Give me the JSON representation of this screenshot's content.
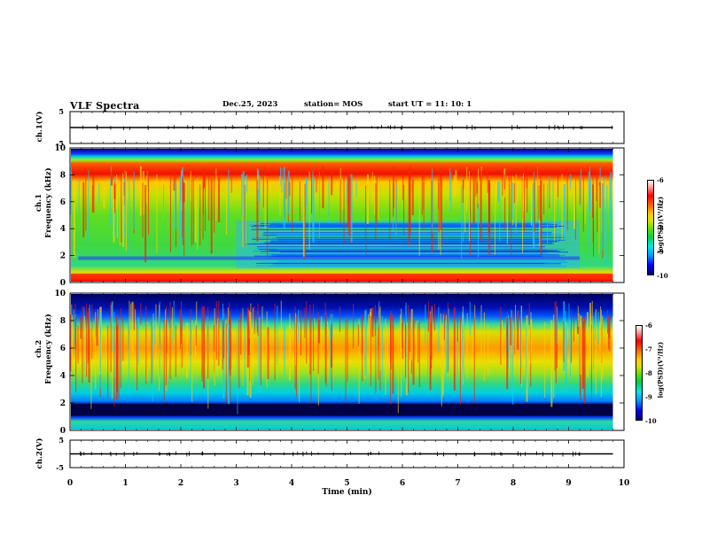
{
  "header": {
    "title": "VLF Spectra",
    "date": "Dec.25, 2023",
    "station": "station= MOS",
    "start": "start UT =  11: 10: 1"
  },
  "xaxis": {
    "label": "Time (min)"
  },
  "panels": {
    "ch1_wave": {
      "label": "ch.1(V)",
      "ticks": [
        "5",
        "-5"
      ]
    },
    "ch1_spec": {
      "label_line1": "ch.1",
      "label_line2": "Frequency (kHz)"
    },
    "ch2_spec": {
      "label_line1": "ch.2",
      "label_line2": "Frequency (kHz)"
    },
    "ch2_wave": {
      "label": "ch.2(V)",
      "ticks": [
        "5",
        "-5"
      ]
    }
  },
  "colorbar": {
    "label": "log(PSD)(V²/Hz)",
    "ticks": [
      "-6",
      "-7",
      "-8",
      "-9",
      "-10"
    ]
  },
  "chart_data": [
    {
      "type": "line",
      "panel": "ch.1 waveform",
      "xlim": [
        0,
        10
      ],
      "ylim": [
        -5,
        5
      ],
      "x_ticks": [
        0,
        1,
        2,
        3,
        4,
        5,
        6,
        7,
        8,
        9,
        10
      ],
      "y_ticks": [
        5,
        -5
      ],
      "ylabel": "ch.1(V)",
      "series": [
        {
          "x_end": 9.8,
          "baseline": 0
        }
      ]
    },
    {
      "type": "heatmap",
      "panel": "ch.1 spectrogram",
      "xlim": [
        0,
        10
      ],
      "ylim": [
        0,
        10
      ],
      "x_ticks": [
        0,
        1,
        2,
        3,
        4,
        5,
        6,
        7,
        8,
        9,
        10
      ],
      "y_ticks": [
        0,
        2,
        4,
        6,
        8,
        10
      ],
      "xlabel": "Time (min)",
      "ylabel": "Frequency (kHz)",
      "data_x_end": 9.8,
      "colorbar_range": [
        -10,
        -6
      ],
      "colorbar_label": "log(PSD)(V²/Hz)"
    },
    {
      "type": "heatmap",
      "panel": "ch.2 spectrogram",
      "xlim": [
        0,
        10
      ],
      "ylim": [
        0,
        10
      ],
      "x_ticks": [
        0,
        1,
        2,
        3,
        4,
        5,
        6,
        7,
        8,
        9,
        10
      ],
      "y_ticks": [
        0,
        2,
        4,
        6,
        8,
        10
      ],
      "xlabel": "Time (min)",
      "ylabel": "Frequency (kHz)",
      "data_x_end": 9.8,
      "colorbar_range": [
        -10,
        -6
      ],
      "colorbar_label": "log(PSD)(V²/Hz)"
    },
    {
      "type": "line",
      "panel": "ch.2 waveform",
      "xlim": [
        0,
        10
      ],
      "ylim": [
        -5,
        5
      ],
      "x_ticks": [
        0,
        1,
        2,
        3,
        4,
        5,
        6,
        7,
        8,
        9,
        10
      ],
      "y_ticks": [
        5,
        -5
      ],
      "xlabel": "Time (min)",
      "ylabel": "ch.2(V)",
      "series": [
        {
          "x_end": 9.8,
          "baseline": 0
        }
      ]
    }
  ]
}
